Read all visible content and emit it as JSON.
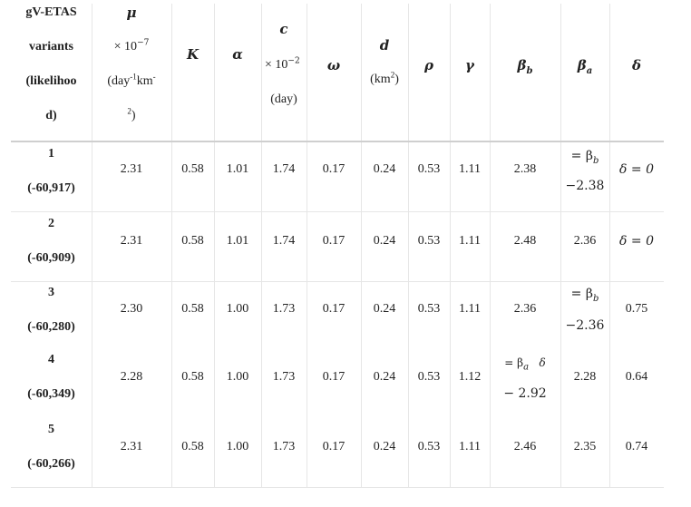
{
  "header": {
    "variants": [
      "gV-ETAS",
      "variants",
      "(likelihoo",
      "d)"
    ],
    "mu_symbol": "μ",
    "mu_scale": "× 10",
    "mu_exp": "−7",
    "mu_unit_a": "(day",
    "mu_unit_b": "-1",
    "mu_unit_c": "km",
    "mu_unit_d": "-",
    "mu_unit_e": "2",
    "mu_unit_f": ")",
    "K": "K",
    "alpha": "α",
    "c_symbol": "c",
    "c_scale": "× 10",
    "c_exp": "−2",
    "c_unit": "(day)",
    "omega": "ω",
    "d_symbol": "d",
    "d_unit_a": "(km",
    "d_unit_b": "2",
    "d_unit_c": ")",
    "rho": "ρ",
    "gamma": "γ",
    "beta_b_sym": "β",
    "beta_b_sub": "b",
    "beta_a_sym": "β",
    "beta_a_sub": "a",
    "delta": "δ"
  },
  "rows": [
    {
      "id": "1",
      "ll": "(-60,917)",
      "mu": "2.31",
      "K": "0.58",
      "alpha": "1.01",
      "c": "1.74",
      "omega": "0.17",
      "d": "0.24",
      "rho": "0.53",
      "gamma": "1.11",
      "beta_b": "2.38",
      "beta_a_line1": "= β",
      "beta_a_line1_sub": "b",
      "beta_a_line2": "−2.38",
      "delta": "δ = 0"
    },
    {
      "id": "2",
      "ll": "(-60,909)",
      "mu": "2.31",
      "K": "0.58",
      "alpha": "1.01",
      "c": "1.74",
      "omega": "0.17",
      "d": "0.24",
      "rho": "0.53",
      "gamma": "1.11",
      "beta_b": "2.48",
      "beta_a": "2.36",
      "delta": "δ = 0"
    },
    {
      "id": "3",
      "ll": "(-60,280)",
      "mu": "2.30",
      "K": "0.58",
      "alpha": "1.00",
      "c": "1.73",
      "omega": "0.17",
      "d": "0.24",
      "rho": "0.53",
      "gamma": "1.11",
      "beta_b": "2.36",
      "beta_a_line1": "= β",
      "beta_a_line1_sub": "b",
      "beta_a_line2": "−2.36",
      "delta": "0.75"
    },
    {
      "id": "4",
      "ll": "(-60,349)",
      "mu": "2.28",
      "K": "0.58",
      "alpha": "1.00",
      "c": "1.73",
      "omega": "0.17",
      "d": "0.24",
      "rho": "0.53",
      "gamma": "1.12",
      "beta_b_line1": "= β",
      "beta_b_line1_sub": "a",
      "beta_b_line1_tail": "   δ",
      "beta_b_line2": "− 2.92",
      "beta_a": "2.28",
      "delta": "0.64"
    },
    {
      "id": "5",
      "ll": "(-60,266)",
      "mu": "2.31",
      "K": "0.58",
      "alpha": "1.00",
      "c": "1.73",
      "omega": "0.17",
      "d": "0.24",
      "rho": "0.53",
      "gamma": "1.11",
      "beta_b": "2.46",
      "beta_a": "2.35",
      "delta": "0.74"
    }
  ]
}
